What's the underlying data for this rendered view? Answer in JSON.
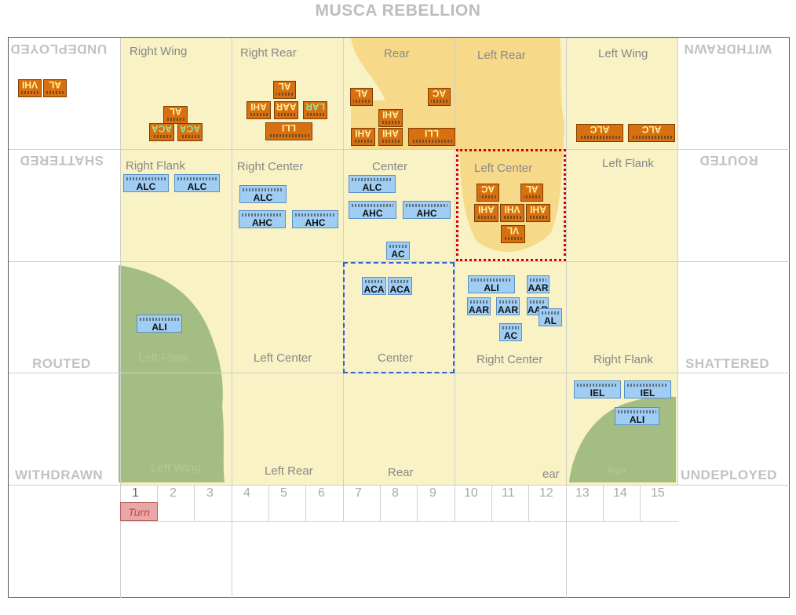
{
  "title": "MUSCA REBELLION",
  "top_side": {
    "undeployed": "UNDEPLOYED",
    "withdrawn": "WITHDRAWN",
    "shattered": "SHATTERED",
    "routed": "ROUTED"
  },
  "bottom_side": {
    "routed": "ROUTED",
    "shattered": "SHATTERED",
    "withdrawn": "WITHDRAWN",
    "undeployed": "UNDEPLOYED"
  },
  "top_sections": {
    "right_wing": "Right Wing",
    "right_rear": "Right Rear",
    "rear": "Rear",
    "left_rear": "Left Rear",
    "left_wing": "Left Wing",
    "right_flank": "Right Flank",
    "right_center": "Right Center",
    "center": "Center",
    "left_center": "Left Center",
    "left_flank": "Left Flank"
  },
  "bottom_sections": {
    "left_flank": "Left Flank",
    "left_center": "Left Center",
    "center": "Center",
    "right_center": "Right Center",
    "right_flank": "Right Flank",
    "left_wing": "Left Wing",
    "left_rear": "Left Rear",
    "rear": "Rear",
    "right_rear_partial": "ear",
    "right_wing_partial": "Righ"
  },
  "turn_track": {
    "numbers": [
      "1",
      "2",
      "3",
      "4",
      "5",
      "6",
      "7",
      "8",
      "9",
      "10",
      "11",
      "12",
      "13",
      "14",
      "15"
    ],
    "current": 1,
    "marker_label": "Turn"
  },
  "red_units": [
    {
      "label": "VHI"
    },
    {
      "label": "AL"
    },
    {
      "label": "AL"
    },
    {
      "label": "ACA",
      "green": true
    },
    {
      "label": "ACA",
      "green": true
    },
    {
      "label": "AL"
    },
    {
      "label": "AHI"
    },
    {
      "label": "AAR"
    },
    {
      "label": "LAR",
      "green": true
    },
    {
      "label": "LLI"
    },
    {
      "label": "AL"
    },
    {
      "label": "AC"
    },
    {
      "label": "AHI"
    },
    {
      "label": "AHI"
    },
    {
      "label": "AHI"
    },
    {
      "label": "LLI"
    },
    {
      "label": "ALC"
    },
    {
      "label": "ALC"
    },
    {
      "label": "AC"
    },
    {
      "label": "AL"
    },
    {
      "label": "AHI"
    },
    {
      "label": "VHI"
    },
    {
      "label": "AHI"
    },
    {
      "label": "VL"
    }
  ],
  "blue_units": [
    {
      "label": "ALC"
    },
    {
      "label": "ALC"
    },
    {
      "label": "ALC"
    },
    {
      "label": "AHC"
    },
    {
      "label": "AHC"
    },
    {
      "label": "ALC"
    },
    {
      "label": "AHC"
    },
    {
      "label": "AHC"
    },
    {
      "label": "AC"
    },
    {
      "label": "ALI"
    },
    {
      "label": "ACA"
    },
    {
      "label": "ACA"
    },
    {
      "label": "ALI"
    },
    {
      "label": "AAR"
    },
    {
      "label": "AAR"
    },
    {
      "label": "AAR"
    },
    {
      "label": "AAR"
    },
    {
      "label": "AL"
    },
    {
      "label": "AC"
    },
    {
      "label": "IEL"
    },
    {
      "label": "IEL"
    },
    {
      "label": "ALI"
    }
  ],
  "colors": {
    "section": "#f8f2c4",
    "rough": "#f7d98a",
    "forest": "#a3bd82",
    "red_unit": "#d9700f",
    "blue_unit": "#9fcdf3",
    "selected_red": "#d40000",
    "selected_blue": "#2d5fd6"
  }
}
